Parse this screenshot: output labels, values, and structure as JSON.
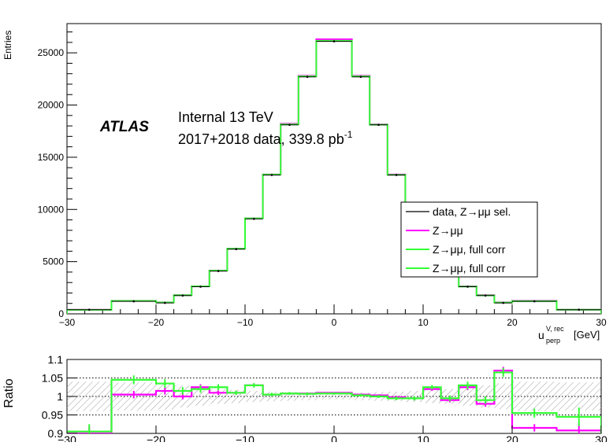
{
  "chart_data": [
    {
      "type": "step",
      "ylabel": "Entries",
      "xlabel_main": "u",
      "xlabel_sup": "V, rec",
      "xlabel_sub": "perp",
      "xlabel_unit": "[GeV]",
      "xlim": [
        -30,
        30
      ],
      "ylim": [
        0,
        27800
      ],
      "x_ticks": [
        -30,
        -20,
        -10,
        0,
        10,
        20,
        30
      ],
      "x_tick_labels": [
        "−30",
        "−20",
        "−10",
        "0",
        "10",
        "20",
        "30"
      ],
      "y_ticks": [
        0,
        5000,
        10000,
        15000,
        20000,
        25000
      ],
      "y_tick_labels": [
        "0",
        "5000",
        "10000",
        "15000",
        "20000",
        "25000"
      ],
      "bin_edges": [
        -30,
        -25,
        -20,
        -18,
        -16,
        -14,
        -12,
        -10,
        -8,
        -6,
        -4,
        -2,
        2,
        4,
        6,
        8,
        10,
        12,
        14,
        16,
        18,
        20,
        25,
        30
      ],
      "annotation": {
        "atlas": "ATLAS",
        "line1": "Internal 13 TeV",
        "line2_main": "2017+2018 data, 339.8 pb",
        "line2_sup": "-1"
      },
      "legend": {
        "placement": "center-right",
        "entries": [
          {
            "label": "data, Z→μμ sel.",
            "color": "#000000"
          },
          {
            "label": "Z→μμ",
            "color": "#ff00ff"
          },
          {
            "label": "Z→μμ, full corr",
            "color": "#33ff33"
          },
          {
            "label": "Z→μμ, full corr",
            "color": "#33ff33"
          }
        ]
      },
      "series": [
        {
          "name": "data, Z→μμ sel.",
          "color": "#000000",
          "kind": "points",
          "values": [
            400,
            1200,
            1050,
            1750,
            2600,
            4100,
            6200,
            9100,
            13300,
            18100,
            22700,
            26100,
            22700,
            18100,
            13300,
            9100,
            6200,
            4100,
            2600,
            1750,
            1050,
            1200,
            400
          ]
        },
        {
          "name": "Z→μμ",
          "color": "#ff00ff",
          "kind": "step",
          "values": [
            400,
            1250,
            1100,
            1800,
            2650,
            4150,
            6250,
            9150,
            13350,
            18200,
            22800,
            26300,
            22800,
            18150,
            13350,
            9150,
            6250,
            4150,
            2650,
            1800,
            1100,
            1250,
            400
          ]
        },
        {
          "name": "Z→μμ, full corr",
          "color": "#33ff33",
          "kind": "step",
          "values": [
            390,
            1240,
            1090,
            1790,
            2640,
            4140,
            6240,
            9140,
            13340,
            18150,
            22750,
            26150,
            22750,
            18120,
            13320,
            9120,
            6220,
            4120,
            2620,
            1770,
            1080,
            1220,
            395
          ]
        }
      ]
    },
    {
      "type": "step",
      "ylabel": "Ratio",
      "xlim": [
        -30,
        30
      ],
      "ylim": [
        0.9,
        1.1
      ],
      "x_ticks": [
        -30,
        -20,
        -10,
        0,
        10,
        20,
        30
      ],
      "x_tick_labels": [
        "−30",
        "−20",
        "−10",
        "0",
        "10",
        "20",
        "30"
      ],
      "y_ticks": [
        0.9,
        0.95,
        1,
        1.05,
        1.1
      ],
      "y_tick_labels": [
        "0.9",
        "0.95",
        "1",
        "1.05",
        "1.1"
      ],
      "gridlines_y": [
        0.95,
        1,
        1.05
      ],
      "band_lo": [
        0.96,
        0.962,
        0.965,
        0.97,
        0.975,
        0.98,
        0.982,
        0.985,
        0.987,
        0.988,
        0.99,
        0.992,
        0.99,
        0.988,
        0.987,
        0.985,
        0.982,
        0.98,
        0.975,
        0.97,
        0.965,
        0.96,
        0.962
      ],
      "band_hi": [
        1.04,
        1.038,
        1.035,
        1.03,
        1.025,
        1.02,
        1.018,
        1.015,
        1.013,
        1.012,
        1.01,
        1.008,
        1.01,
        1.012,
        1.013,
        1.015,
        1.018,
        1.02,
        1.025,
        1.03,
        1.035,
        1.04,
        1.038
      ],
      "series": [
        {
          "name": "Z→μμ",
          "color": "#ff00ff",
          "values": [
            0.9,
            1.005,
            1.015,
            1.0,
            1.025,
            1.01,
            1.01,
            1.03,
            1.005,
            1.008,
            1.008,
            1.01,
            1.005,
            1.003,
            0.998,
            0.995,
            1.02,
            0.99,
            1.025,
            0.98,
            1.07,
            0.915,
            0.908
          ],
          "errors": [
            0.02,
            0.01,
            0.01,
            0.008,
            0.008,
            0.006,
            0.005,
            0.005,
            0.004,
            0.003,
            0.003,
            0.002,
            0.003,
            0.003,
            0.004,
            0.005,
            0.005,
            0.006,
            0.008,
            0.008,
            0.01,
            0.01,
            0.02
          ]
        },
        {
          "name": "Z→μμ, full corr",
          "color": "#33ff33",
          "values": [
            0.905,
            1.045,
            1.035,
            1.015,
            1.02,
            1.025,
            1.01,
            1.03,
            1.005,
            1.008,
            1.007,
            1.008,
            1.003,
            1.0,
            0.995,
            0.995,
            1.025,
            0.995,
            1.03,
            0.99,
            1.065,
            0.955,
            0.945
          ],
          "errors": [
            0.02,
            0.012,
            0.012,
            0.01,
            0.01,
            0.008,
            0.006,
            0.006,
            0.005,
            0.004,
            0.004,
            0.003,
            0.004,
            0.004,
            0.005,
            0.006,
            0.006,
            0.008,
            0.01,
            0.01,
            0.012,
            0.012,
            0.025
          ]
        }
      ]
    }
  ]
}
